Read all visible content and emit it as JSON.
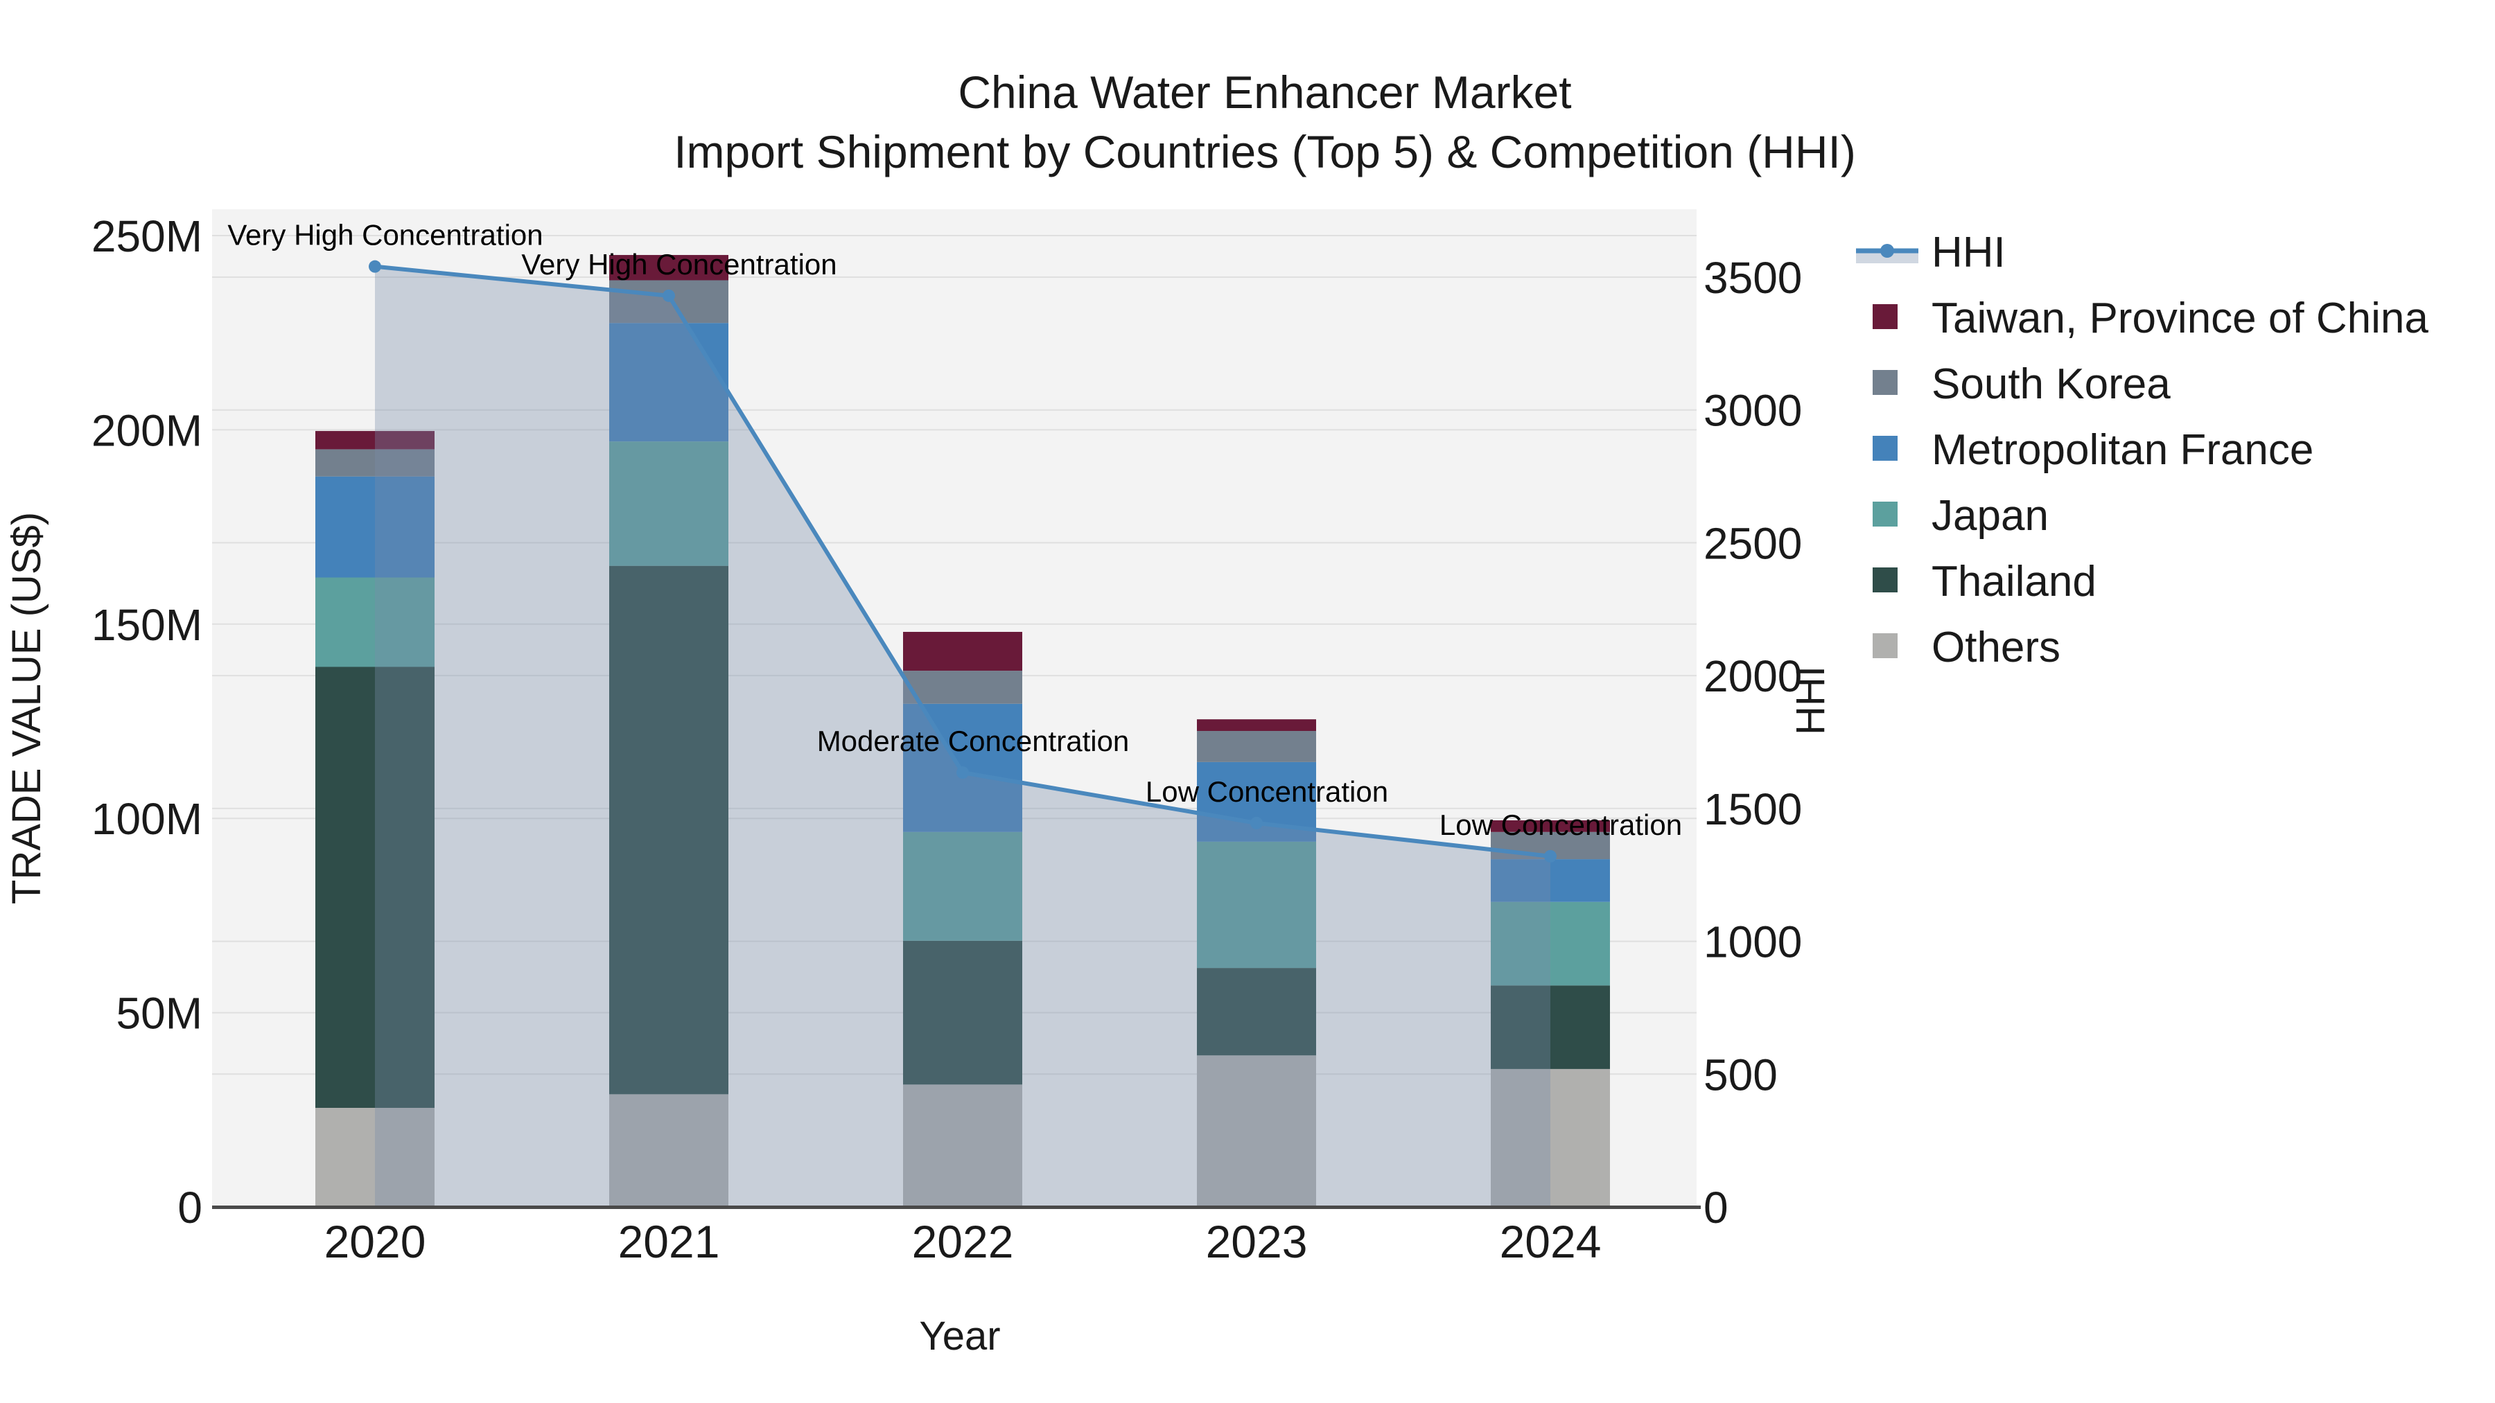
{
  "title": {
    "line1": "China Water Enhancer Market",
    "line2": "Import Shipment by Countries (Top 5) & Competition (HHI)"
  },
  "chart_data": {
    "type": "bar+line",
    "categories": [
      "2020",
      "2021",
      "2022",
      "2023",
      "2024"
    ],
    "bar_unit": "US$ millions",
    "stack_series": [
      {
        "name": "Others",
        "color": "#b0b0ae",
        "values": [
          25.5,
          29.0,
          31.5,
          39.0,
          35.5
        ]
      },
      {
        "name": "Thailand",
        "color": "#2f4d49",
        "values": [
          113.5,
          136.0,
          37.0,
          22.5,
          21.5
        ]
      },
      {
        "name": "Japan",
        "color": "#5ca09e",
        "values": [
          23.0,
          32.0,
          28.0,
          32.5,
          21.5
        ]
      },
      {
        "name": "Metropolitan France",
        "color": "#4482ba",
        "values": [
          26.0,
          30.5,
          33.0,
          20.5,
          11.0
        ]
      },
      {
        "name": "South Korea",
        "color": "#73808e",
        "values": [
          7.0,
          11.0,
          8.5,
          8.0,
          7.0
        ]
      },
      {
        "name": "Taiwan, Province of China",
        "color": "#691a39",
        "values": [
          4.7,
          6.5,
          10.0,
          3.0,
          3.0
        ]
      }
    ],
    "line_series": {
      "name": "HHI",
      "color": "#4a88bd",
      "fill": "rgba(120,140,170,0.35)",
      "values": [
        3540,
        3430,
        1635,
        1445,
        1320
      ]
    },
    "annotations": [
      {
        "category": "2020",
        "text": "Very High Concentration"
      },
      {
        "category": "2021",
        "text": "Very High Concentration"
      },
      {
        "category": "2022",
        "text": "Moderate Concentration"
      },
      {
        "category": "2023",
        "text": "Low Concentration"
      },
      {
        "category": "2024",
        "text": "Low Concentration"
      }
    ],
    "xlabel": "Year",
    "yaxis_left": {
      "title": "TRADE VALUE (US$)",
      "ticks": [
        0,
        50,
        100,
        150,
        200,
        250
      ],
      "labels": [
        "0",
        "50M",
        "100M",
        "150M",
        "200M",
        "250M"
      ],
      "max": 250
    },
    "yaxis_right": {
      "title": "HHI",
      "ticks": [
        0,
        500,
        1000,
        1500,
        2000,
        2500,
        3000,
        3500
      ],
      "labels": [
        "0",
        "500",
        "1000",
        "1500",
        "2000",
        "2500",
        "3000",
        "3500"
      ],
      "max": 3500
    },
    "legend_order": [
      "HHI",
      "Taiwan, Province of China",
      "South Korea",
      "Metropolitan France",
      "Japan",
      "Thailand",
      "Others"
    ],
    "grid": true,
    "legend_position": "right",
    "plot_background": "#f3f3f3",
    "gridline_color": "#dfdfdf",
    "axisline_color": "#4a4a4a"
  }
}
